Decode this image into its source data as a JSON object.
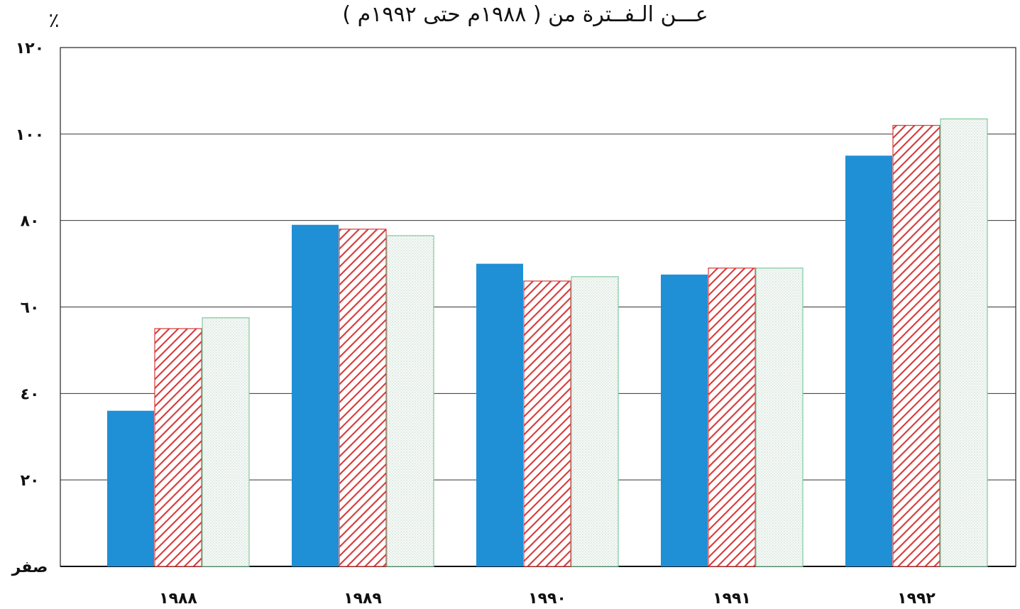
{
  "chart_data": {
    "type": "bar",
    "title": "عـــن الـفــترة من ( ١٩٨٨م حتى ١٩٩٢م )",
    "y_unit": "٪",
    "categories": [
      "١٩٨٨",
      "١٩٨٩",
      "١٩٩٠",
      "١٩٩١",
      "١٩٩٢"
    ],
    "series": [
      {
        "values": [
          36,
          79,
          70,
          67.5,
          95
        ],
        "color": "#1f8fd6",
        "pattern": "solid"
      },
      {
        "values": [
          55,
          78,
          66,
          69,
          102
        ],
        "color": "#d63a3a",
        "pattern": "red-diagonal-hatch"
      },
      {
        "values": [
          57.5,
          76.5,
          67,
          69,
          103.5
        ],
        "color": "#7ec8a0",
        "pattern": "green-light-dotted"
      }
    ],
    "ylim": [
      0,
      120
    ],
    "yticks": [
      {
        "value": 0,
        "label": "صفر"
      },
      {
        "value": 20,
        "label": "٢٠"
      },
      {
        "value": 40,
        "label": "٤٠"
      },
      {
        "value": 60,
        "label": "٦٠"
      },
      {
        "value": 80,
        "label": "٨٠"
      },
      {
        "value": 100,
        "label": "١٠٠"
      },
      {
        "value": 120,
        "label": "١٢٠"
      }
    ],
    "grid": true,
    "legend": "none"
  }
}
